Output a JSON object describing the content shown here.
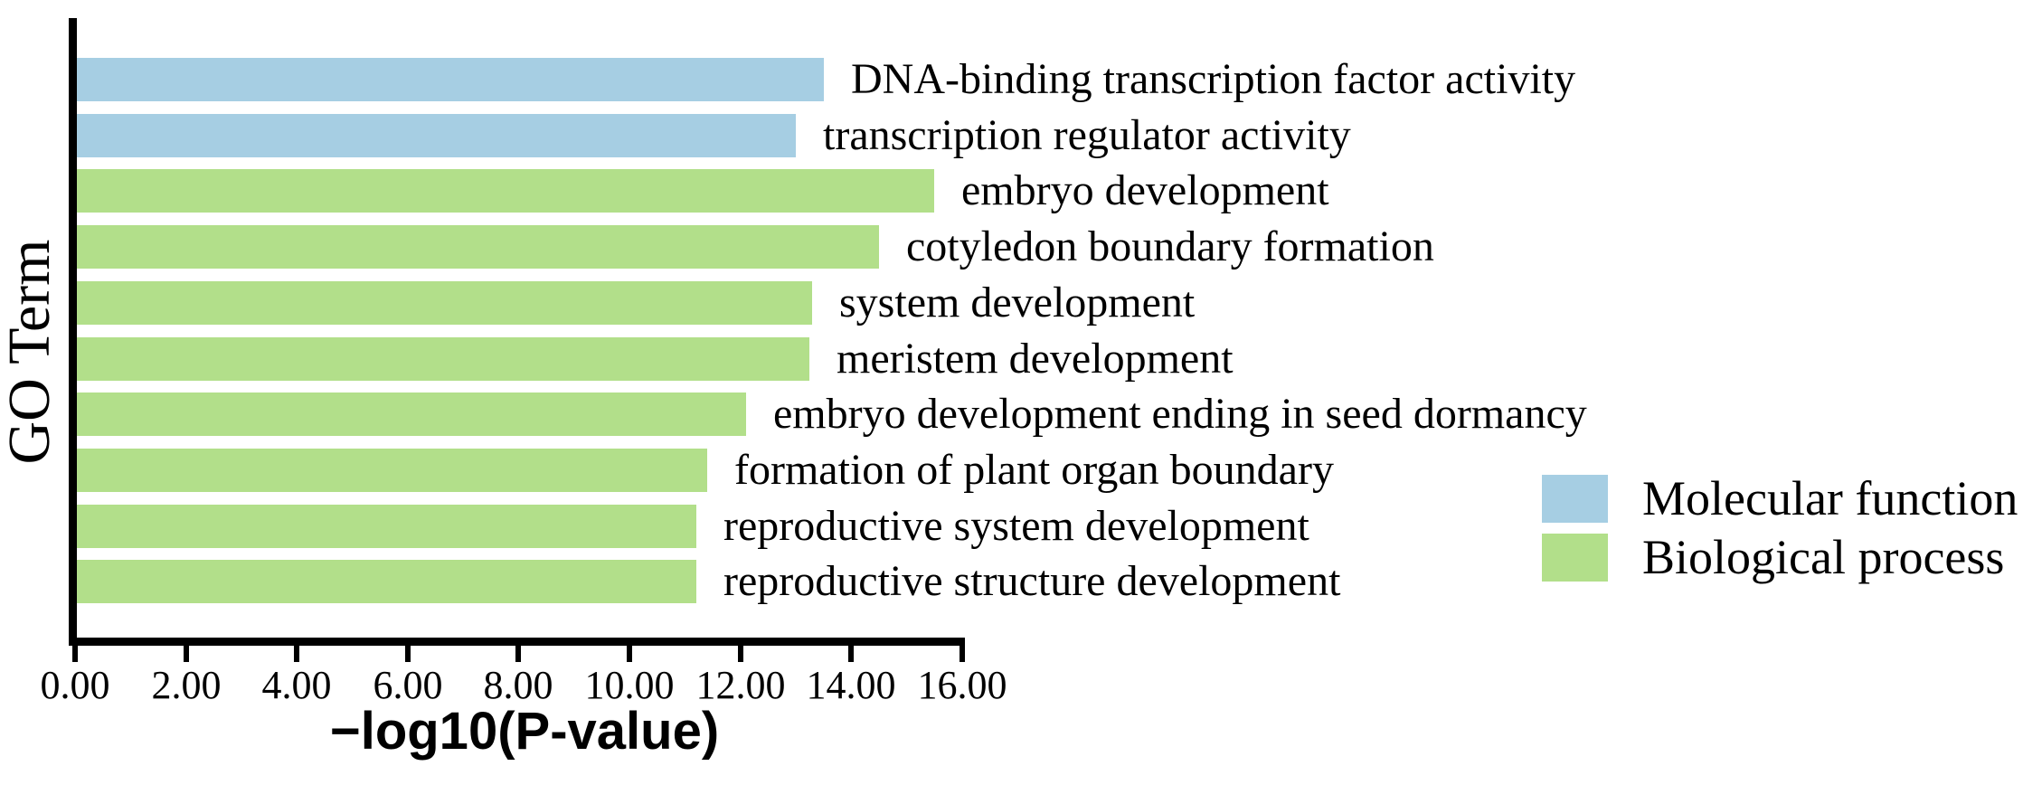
{
  "chart_data": {
    "type": "bar",
    "orientation": "horizontal",
    "title": "",
    "xlabel": "−log10(P-value)",
    "ylabel": "GO Term",
    "xlim": [
      0,
      16
    ],
    "grid": false,
    "legend_position": "right-middle",
    "xticks": [
      {
        "value": 0,
        "label": "0.00"
      },
      {
        "value": 2,
        "label": "2.00"
      },
      {
        "value": 4,
        "label": "4.00"
      },
      {
        "value": 6,
        "label": "6.00"
      },
      {
        "value": 8,
        "label": "8.00"
      },
      {
        "value": 10,
        "label": "10.00"
      },
      {
        "value": 12,
        "label": "12.00"
      },
      {
        "value": 14,
        "label": "14.00"
      },
      {
        "value": 16,
        "label": "16.00"
      }
    ],
    "series": [
      {
        "name": "Molecular function",
        "color": "#a6cee3"
      },
      {
        "name": "Biological process",
        "color": "#b2df8a"
      }
    ],
    "bars": [
      {
        "category": "DNA-binding transcription factor activity",
        "value": 13.5,
        "group": "Molecular function"
      },
      {
        "category": "transcription regulator activity",
        "value": 13.0,
        "group": "Molecular function"
      },
      {
        "category": "embryo development",
        "value": 15.5,
        "group": "Biological process"
      },
      {
        "category": "cotyledon boundary formation",
        "value": 14.5,
        "group": "Biological process"
      },
      {
        "category": "system development",
        "value": 13.3,
        "group": "Biological process"
      },
      {
        "category": "meristem development",
        "value": 13.25,
        "group": "Biological process"
      },
      {
        "category": "embryo development ending in seed dormancy",
        "value": 12.1,
        "group": "Biological process"
      },
      {
        "category": "formation of plant organ boundary",
        "value": 11.4,
        "group": "Biological process"
      },
      {
        "category": "reproductive system development",
        "value": 11.2,
        "group": "Biological process"
      },
      {
        "category": "reproductive structure development",
        "value": 11.2,
        "group": "Biological process"
      }
    ]
  },
  "legend": {
    "items": [
      {
        "label": "Molecular function",
        "color": "#a6cee3"
      },
      {
        "label": "Biological process",
        "color": "#b2df8a"
      }
    ]
  },
  "colors": {
    "molecular_function": "#a6cee3",
    "biological_process": "#b2df8a",
    "axis": "#000000",
    "background": "#ffffff"
  }
}
